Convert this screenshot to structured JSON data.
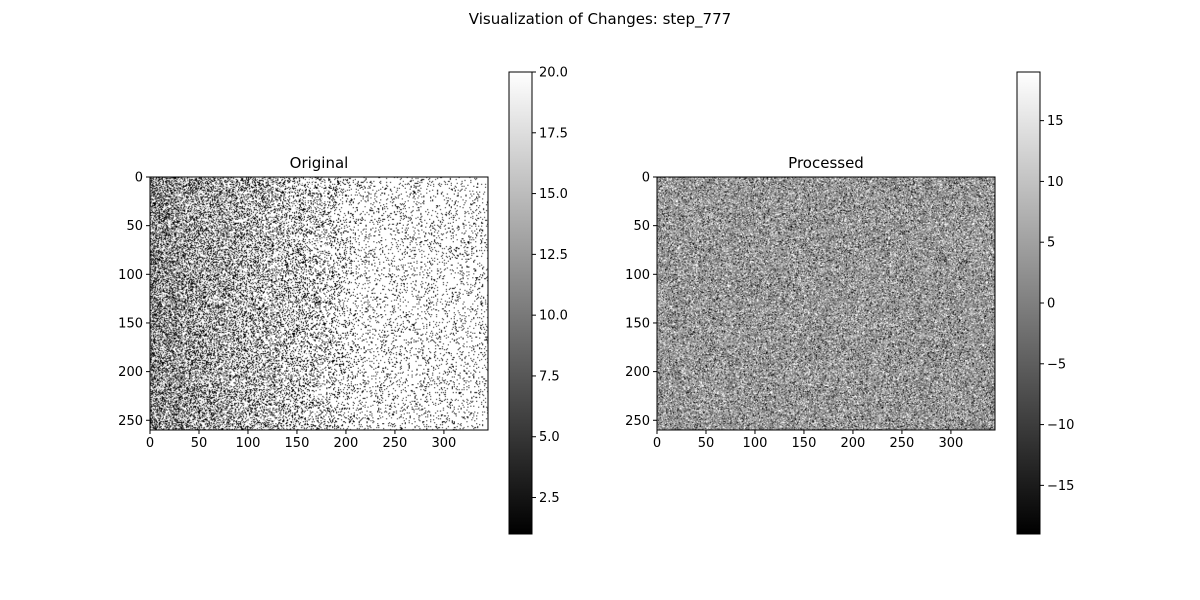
{
  "figure": {
    "title": "Visualization of Changes: step_777"
  },
  "chart_data": [
    {
      "type": "heatmap",
      "title": "Original",
      "colormap": "gray",
      "xlim": [
        0,
        345
      ],
      "ylim": [
        260,
        0
      ],
      "xticks": [
        0,
        50,
        100,
        150,
        200,
        250,
        300
      ],
      "yticks": [
        0,
        50,
        100,
        150,
        200,
        250
      ],
      "colorbar": {
        "range": [
          1.0,
          20.0
        ],
        "ticks": [
          2.5,
          5.0,
          7.5,
          10.0,
          12.5,
          15.0,
          17.5,
          20.0
        ],
        "tick_labels": [
          "2.5",
          "5.0",
          "7.5",
          "10.0",
          "12.5",
          "15.0",
          "17.5",
          "20.0"
        ]
      },
      "pattern": "noisy grayscale image, darker on the left (x < 150), mostly bright/white on the right"
    },
    {
      "type": "heatmap",
      "title": "Processed",
      "colormap": "gray",
      "xlim": [
        0,
        345
      ],
      "ylim": [
        260,
        0
      ],
      "xticks": [
        0,
        50,
        100,
        150,
        200,
        250,
        300
      ],
      "yticks": [
        0,
        50,
        100,
        150,
        200,
        250
      ],
      "colorbar": {
        "range": [
          -19.0,
          19.0
        ],
        "ticks": [
          -15,
          -10,
          -5,
          0,
          5,
          10,
          15
        ],
        "tick_labels": [
          "−15",
          "−10",
          "−5",
          "0",
          "5",
          "10",
          "15"
        ]
      },
      "pattern": "uniform mid-gray noise centered near 0"
    }
  ]
}
